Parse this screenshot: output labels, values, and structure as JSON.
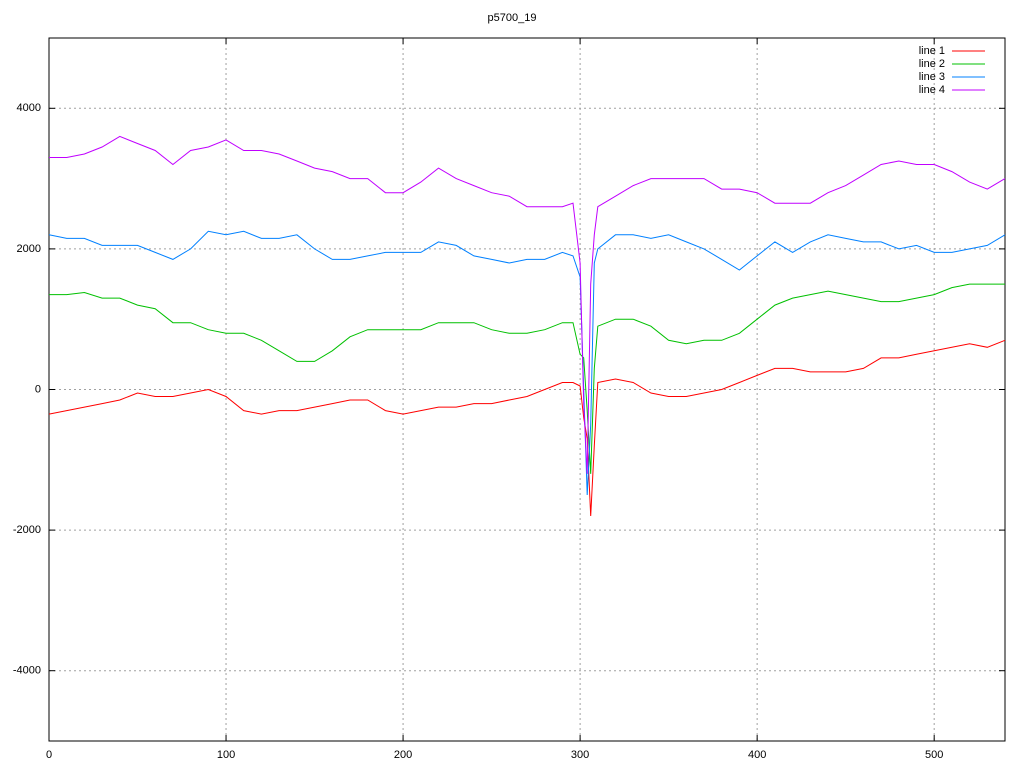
{
  "chart_data": {
    "type": "line",
    "title": "p5700_19",
    "x": [
      0,
      10,
      20,
      30,
      40,
      50,
      60,
      70,
      80,
      90,
      100,
      110,
      120,
      130,
      140,
      150,
      160,
      170,
      180,
      190,
      200,
      210,
      220,
      230,
      240,
      250,
      260,
      270,
      280,
      290,
      296,
      300,
      302,
      304,
      306,
      308,
      310,
      320,
      330,
      340,
      350,
      360,
      370,
      380,
      390,
      400,
      410,
      420,
      430,
      440,
      450,
      460,
      470,
      480,
      490,
      500,
      510,
      520,
      530,
      540
    ],
    "series": [
      {
        "name": "line 1",
        "color": "#ff0000",
        "values": [
          -350,
          -300,
          -250,
          -200,
          -150,
          -50,
          -100,
          -100,
          -50,
          0,
          -100,
          -300,
          -350,
          -300,
          -300,
          -250,
          -200,
          -150,
          -150,
          -300,
          -350,
          -300,
          -250,
          -250,
          -200,
          -200,
          -150,
          -100,
          0,
          100,
          100,
          50,
          -400,
          -700,
          -1800,
          -800,
          100,
          150,
          100,
          -50,
          -100,
          -100,
          -50,
          0,
          100,
          200,
          300,
          300,
          250,
          250,
          250,
          300,
          450,
          450,
          500,
          550,
          600,
          650,
          600,
          700
        ]
      },
      {
        "name": "line 2",
        "color": "#00c000",
        "values": [
          1350,
          1350,
          1380,
          1300,
          1300,
          1200,
          1150,
          950,
          950,
          850,
          800,
          800,
          700,
          550,
          400,
          400,
          550,
          750,
          850,
          850,
          850,
          850,
          950,
          950,
          950,
          850,
          800,
          800,
          850,
          950,
          950,
          500,
          450,
          -300,
          -1200,
          300,
          900,
          1000,
          1000,
          900,
          700,
          650,
          700,
          700,
          800,
          1000,
          1200,
          1300,
          1350,
          1400,
          1350,
          1300,
          1250,
          1250,
          1300,
          1350,
          1450,
          1500,
          1500,
          1500
        ]
      },
      {
        "name": "line 3",
        "color": "#0080ff",
        "values": [
          2200,
          2150,
          2150,
          2050,
          2050,
          2050,
          1950,
          1850,
          2000,
          2250,
          2200,
          2250,
          2150,
          2150,
          2200,
          2000,
          1850,
          1850,
          1900,
          1950,
          1950,
          1950,
          2100,
          2050,
          1900,
          1850,
          1800,
          1850,
          1850,
          1950,
          1900,
          1600,
          0,
          -1500,
          -500,
          1800,
          2000,
          2200,
          2200,
          2150,
          2200,
          2100,
          2000,
          1850,
          1700,
          1900,
          2100,
          1950,
          2100,
          2200,
          2150,
          2100,
          2100,
          2000,
          2050,
          1950,
          1950,
          2000,
          2050,
          2200
        ]
      },
      {
        "name": "line 4",
        "color": "#c000ff",
        "values": [
          3300,
          3300,
          3350,
          3450,
          3600,
          3500,
          3400,
          3200,
          3400,
          3450,
          3550,
          3400,
          3400,
          3350,
          3250,
          3150,
          3100,
          3000,
          3000,
          2800,
          2800,
          2950,
          3150,
          3000,
          2900,
          2800,
          2750,
          2600,
          2600,
          2600,
          2650,
          1800,
          -200,
          -1200,
          1500,
          2200,
          2600,
          2750,
          2900,
          3000,
          3000,
          3000,
          3000,
          2850,
          2850,
          2800,
          2650,
          2650,
          2650,
          2800,
          2900,
          3050,
          3200,
          3250,
          3200,
          3200,
          3100,
          2950,
          2850,
          3000
        ]
      }
    ],
    "xlim": [
      0,
      540
    ],
    "ylim": [
      -5000,
      5000
    ],
    "xticks": [
      0,
      100,
      200,
      300,
      400,
      500
    ],
    "yticks": [
      -4000,
      -2000,
      0,
      2000,
      4000
    ],
    "grid": true,
    "legend": "top-right"
  }
}
